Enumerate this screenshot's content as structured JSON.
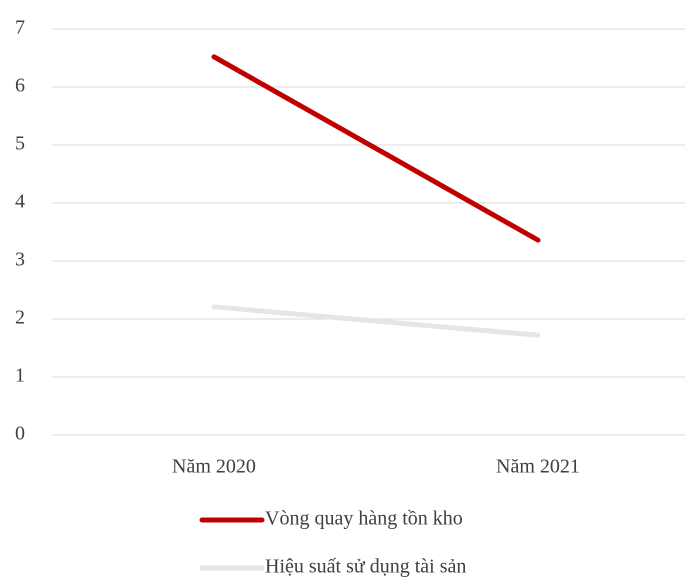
{
  "chart_data": {
    "type": "line",
    "categories": [
      "Năm 2020",
      "Năm 2021"
    ],
    "series": [
      {
        "name": "Vòng quay hàng tồn kho",
        "color": "#c00000",
        "values": [
          6.52,
          3.36
        ]
      },
      {
        "name": "Hiệu suất sử dụng tài sản",
        "color": "#e6e6e6",
        "values": [
          2.21,
          1.72
        ]
      }
    ],
    "ylim": [
      0,
      7
    ],
    "yticks": [
      0,
      1,
      2,
      3,
      4,
      5,
      6,
      7
    ],
    "grid": true,
    "legend": "bottom"
  }
}
